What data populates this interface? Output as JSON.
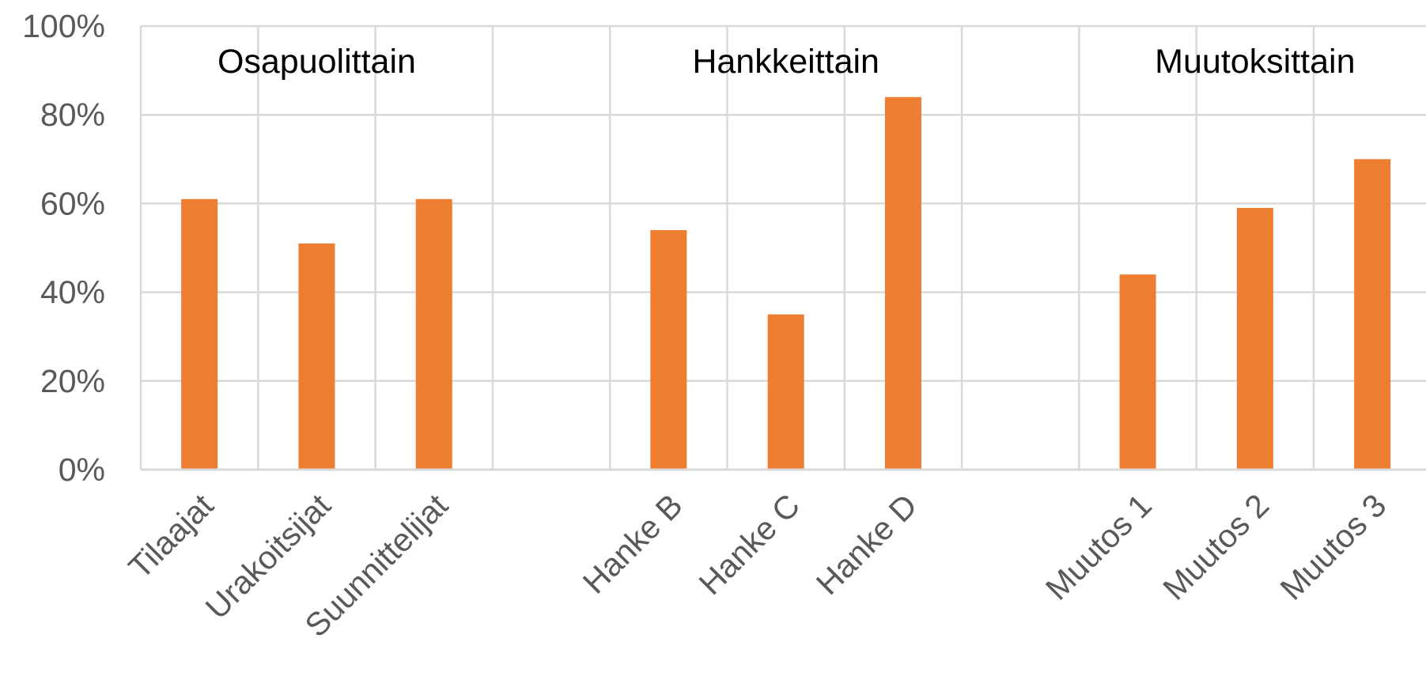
{
  "chart_data": {
    "type": "bar",
    "ylim": [
      0,
      100
    ],
    "ytick_values": [
      0,
      20,
      40,
      60,
      80,
      100
    ],
    "ytick_labels": [
      "0%",
      "20%",
      "40%",
      "60%",
      "80%",
      "100%"
    ],
    "grid": true,
    "colors": {
      "bar": "#ED7D31",
      "grid": "#D9D9D9",
      "tick_text": "#595959",
      "group_title": "#000000"
    },
    "groups": [
      {
        "title": "Osapuolittain",
        "categories": [
          "Tilaajat",
          "Urakoitsijat",
          "Suunnittelijat"
        ],
        "values": [
          61,
          51,
          61
        ]
      },
      {
        "title": "Hankkeittain",
        "categories": [
          "Hanke B",
          "Hanke C",
          "Hanke D"
        ],
        "values": [
          54,
          35,
          84
        ]
      },
      {
        "title": "Muutoksittain",
        "categories": [
          "Muutos 1",
          "Muutos 2",
          "Muutos 3"
        ],
        "values": [
          44,
          59,
          70
        ]
      }
    ]
  }
}
